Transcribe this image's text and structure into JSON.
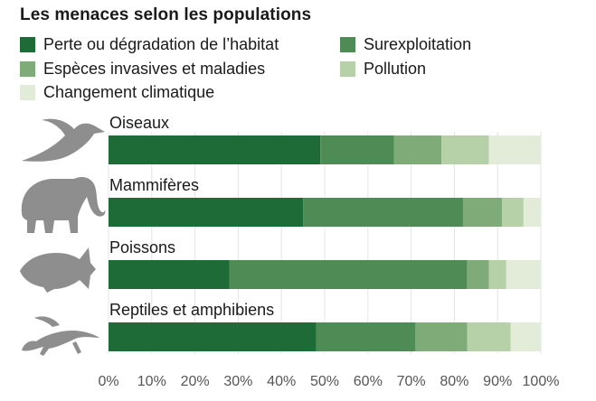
{
  "chart_data": {
    "type": "bar",
    "orientation": "horizontal",
    "stacked": true,
    "title": "Les menaces selon les populations",
    "categories": [
      "Oiseaux",
      "Mammifères",
      "Poissons",
      "Reptiles et amphibiens"
    ],
    "series": [
      {
        "name": "Perte ou dégradation de l’habitat",
        "color": "#1e6b37",
        "values": [
          49,
          45,
          28,
          48
        ]
      },
      {
        "name": "Surexploitation",
        "color": "#4e8b55",
        "values": [
          17,
          37,
          55,
          23
        ]
      },
      {
        "name": "Espèces invasives et maladies",
        "color": "#7fab79",
        "values": [
          11,
          9,
          5,
          12
        ]
      },
      {
        "name": "Pollution",
        "color": "#b6d1a8",
        "values": [
          11,
          5,
          4,
          10
        ]
      },
      {
        "name": "Changement climatique",
        "color": "#e3ecd9",
        "values": [
          12,
          4,
          8,
          7
        ]
      }
    ],
    "xlim": [
      0,
      100
    ],
    "xticks": [
      "0%",
      "10%",
      "20%",
      "30%",
      "40%",
      "50%",
      "60%",
      "70%",
      "80%",
      "90%",
      "100%"
    ],
    "grid": true,
    "legend_position": "top"
  }
}
